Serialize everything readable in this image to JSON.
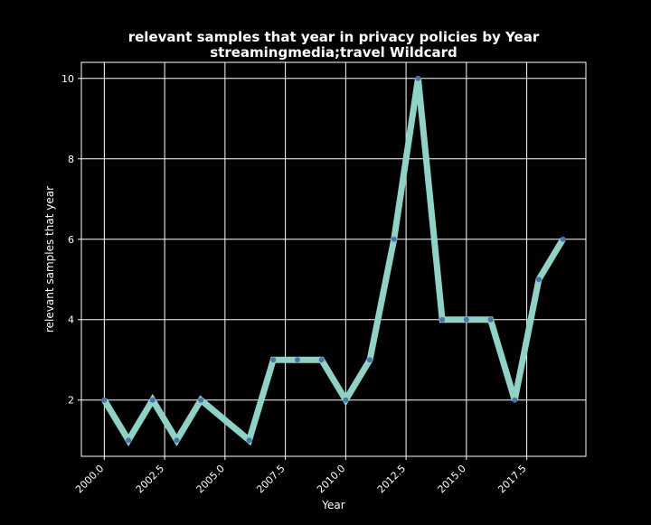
{
  "chart_data": {
    "type": "line",
    "title_line1": "relevant samples that year in privacy policies by Year",
    "title_line2": "streamingmedia;travel Wildcard",
    "xlabel": "Year",
    "ylabel": "relevant samples that year",
    "xlim": [
      1999.05,
      2019.95
    ],
    "ylim": [
      0.6,
      10.4
    ],
    "x_ticks": [
      2000,
      2002.5,
      2005,
      2007.5,
      2010,
      2012.5,
      2015,
      2017.5
    ],
    "x_tick_labels": [
      "2000.0",
      "2002.5",
      "2005.0",
      "2007.5",
      "2010.0",
      "2012.5",
      "2015.0",
      "2017.5"
    ],
    "y_ticks": [
      2,
      4,
      6,
      8,
      10
    ],
    "y_tick_labels": [
      "2",
      "4",
      "6",
      "8",
      "10"
    ],
    "grid": true,
    "series": [
      {
        "x": [
          2000,
          2001,
          2002,
          2003,
          2004,
          2006,
          2007,
          2008,
          2009,
          2010,
          2011,
          2012,
          2013,
          2014,
          2015,
          2016,
          2017,
          2018,
          2019
        ],
        "y": [
          2,
          1,
          2,
          1,
          2,
          1,
          3,
          3,
          3,
          2,
          3,
          6,
          10,
          4,
          4,
          4,
          2,
          5,
          6
        ]
      }
    ],
    "colors": {
      "background": "#000000",
      "line": "#8dd3c7",
      "marker": "#4c72b0",
      "grid": "#ffffff",
      "axes": "#ffffff"
    }
  }
}
